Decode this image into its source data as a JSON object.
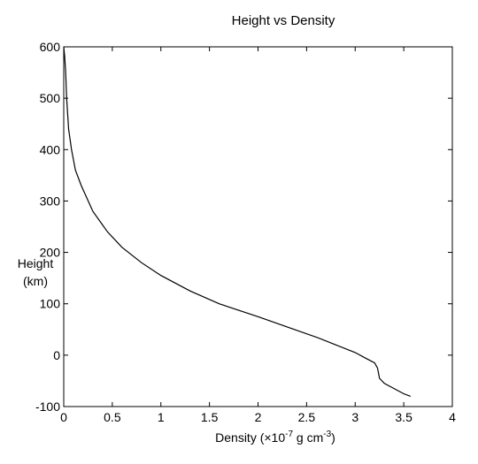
{
  "chart_data": {
    "type": "line",
    "title": "Height vs Density",
    "xlabel": {
      "prefix": "Density (×10",
      "exp": "-7",
      "mid": " g cm",
      "exp2": "-3",
      "suffix": ")"
    },
    "ylabel_line1": "Height",
    "ylabel_line2": "(km)",
    "xlim": [
      0,
      4
    ],
    "ylim": [
      -100,
      600
    ],
    "xticks": [
      {
        "v": 0,
        "label": "0"
      },
      {
        "v": 0.5,
        "label": "0.5"
      },
      {
        "v": 1,
        "label": "1"
      },
      {
        "v": 1.5,
        "label": "1.5"
      },
      {
        "v": 2,
        "label": "2"
      },
      {
        "v": 2.5,
        "label": "2.5"
      },
      {
        "v": 3,
        "label": "3"
      },
      {
        "v": 3.5,
        "label": "3.5"
      },
      {
        "v": 4,
        "label": "4"
      }
    ],
    "yticks": [
      {
        "v": 600,
        "label": "600"
      },
      {
        "v": 500,
        "label": "500"
      },
      {
        "v": 400,
        "label": "400"
      },
      {
        "v": 300,
        "label": "300"
      },
      {
        "v": 200,
        "label": "200"
      },
      {
        "v": 100,
        "label": "100"
      },
      {
        "v": 0,
        "label": "0"
      },
      {
        "v": -100,
        "label": "-100"
      }
    ],
    "grid": false,
    "series": [
      {
        "color": "#000000",
        "points": [
          [
            0.0,
            600
          ],
          [
            0.01,
            580
          ],
          [
            0.02,
            550
          ],
          [
            0.03,
            500
          ],
          [
            0.05,
            440
          ],
          [
            0.08,
            400
          ],
          [
            0.12,
            360
          ],
          [
            0.18,
            330
          ],
          [
            0.3,
            280
          ],
          [
            0.45,
            240
          ],
          [
            0.6,
            210
          ],
          [
            0.8,
            180
          ],
          [
            1.0,
            155
          ],
          [
            1.3,
            125
          ],
          [
            1.6,
            100
          ],
          [
            2.0,
            75
          ],
          [
            2.3,
            55
          ],
          [
            2.6,
            35
          ],
          [
            2.8,
            20
          ],
          [
            3.0,
            5
          ],
          [
            3.1,
            -5
          ],
          [
            3.2,
            -15
          ],
          [
            3.23,
            -25
          ],
          [
            3.24,
            -35
          ],
          [
            3.25,
            -45
          ],
          [
            3.3,
            -55
          ],
          [
            3.4,
            -65
          ],
          [
            3.5,
            -75
          ],
          [
            3.57,
            -80
          ]
        ]
      }
    ]
  }
}
